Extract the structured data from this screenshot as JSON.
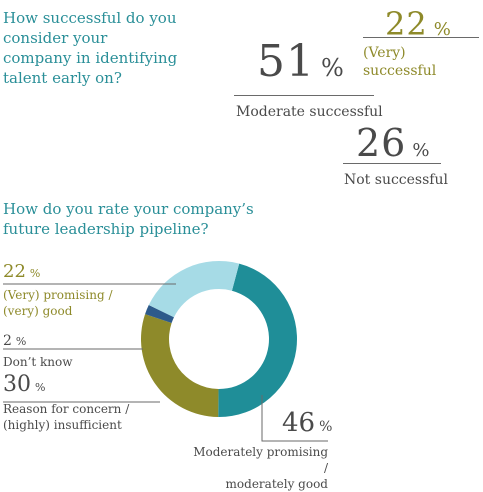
{
  "q1": {
    "question_lines": [
      "How successful do you",
      "consider your",
      "company in identifying",
      "talent early on?"
    ],
    "results": [
      {
        "value": "22",
        "unit": "%",
        "label": "(Very) successful"
      },
      {
        "value": "51",
        "unit": "%",
        "label": "Moderate successful"
      },
      {
        "value": "26",
        "unit": "%",
        "label": "Not successful"
      }
    ]
  },
  "q2": {
    "question_lines": [
      "How do you rate your company’s",
      "future leadership pipeline?"
    ]
  },
  "chart_data": {
    "type": "pie",
    "title": "How do you rate your company’s future leadership pipeline?",
    "slices": [
      {
        "value": 46,
        "unit": "%",
        "label_lines": [
          "Moderately promising /",
          "moderately good"
        ],
        "color": "#1f8e98"
      },
      {
        "value": 30,
        "unit": "%",
        "label_lines": [
          "Reason for concern /",
          "(highly) insufficient"
        ],
        "color": "#8e8a2a"
      },
      {
        "value": 2,
        "unit": "%",
        "label_lines": [
          "Don’t know"
        ],
        "color": "#2d5a8a"
      },
      {
        "value": 22,
        "unit": "%",
        "label_lines": [
          "(Very) promising /",
          "(very) good"
        ],
        "color": "#a6dbe6"
      }
    ]
  }
}
